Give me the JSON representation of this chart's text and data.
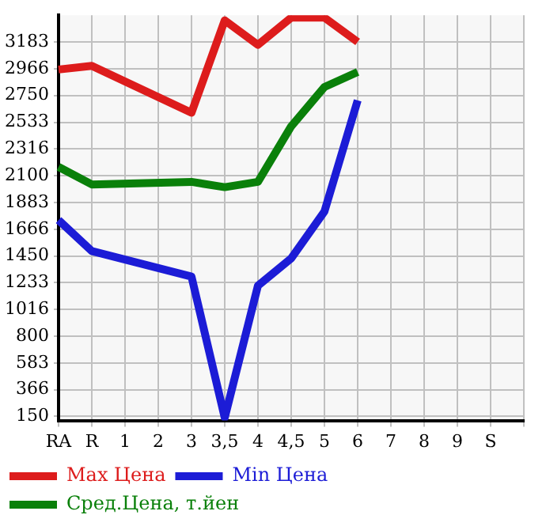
{
  "chart_data": {
    "type": "line",
    "categories": [
      "RA",
      "R",
      "1",
      "2",
      "3",
      "3,5",
      "4",
      "4,5",
      "5",
      "6",
      "7",
      "8",
      "9",
      "S",
      null
    ],
    "series": [
      {
        "name": "Max Цена",
        "color": "#dd1c1c",
        "values": [
          2960,
          2990,
          null,
          null,
          2610,
          3358,
          3160,
          3380,
          3380,
          3183,
          null,
          null,
          null,
          null,
          null
        ]
      },
      {
        "name": "Min Цена",
        "color": "#1c1cd6",
        "values": [
          1740,
          1490,
          null,
          null,
          1283,
          140,
          1210,
          1430,
          1810,
          2710,
          null,
          null,
          null,
          null,
          null
        ]
      },
      {
        "name": "Сред.Цена, т.йен",
        "color": "#0a800a",
        "values": [
          2171,
          2029,
          null,
          null,
          2050,
          2007,
          2050,
          2500,
          2818,
          2940,
          null,
          null,
          null,
          null,
          null
        ]
      }
    ],
    "ylim": [
      117,
      3400
    ],
    "yticks": [
      150,
      366,
      583,
      800,
      1016,
      1233,
      1450,
      1666,
      1883,
      2100,
      2316,
      2533,
      2750,
      2966,
      3183
    ],
    "grid": true,
    "legend": "bottom",
    "marker": "none",
    "line_style": "solid"
  }
}
